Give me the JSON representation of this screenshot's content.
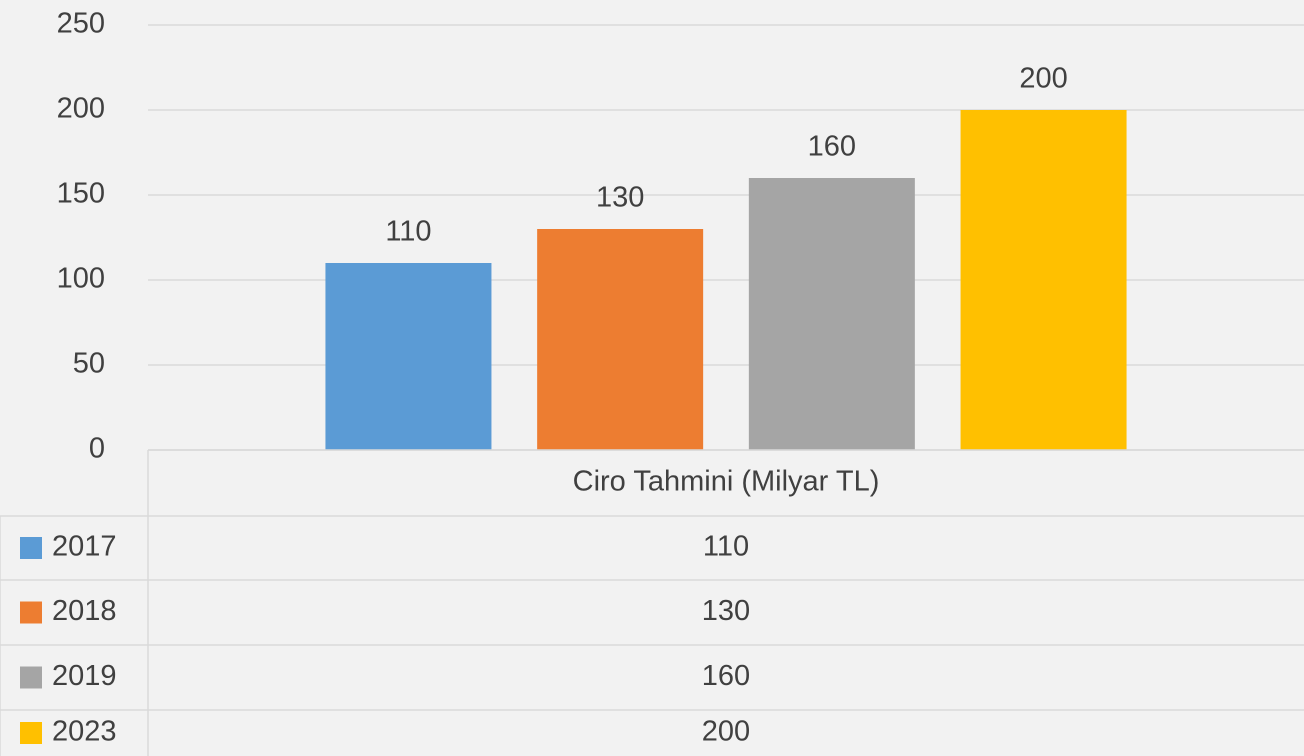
{
  "chart_data": {
    "type": "bar",
    "categories": [
      "Ciro Tahmini (Milyar TL)"
    ],
    "series": [
      {
        "name": "2017",
        "color": "#5b9bd5",
        "values": [
          110
        ]
      },
      {
        "name": "2018",
        "color": "#ed7d31",
        "values": [
          130
        ]
      },
      {
        "name": "2019",
        "color": "#a5a5a5",
        "values": [
          160
        ]
      },
      {
        "name": "2023",
        "color": "#ffc000",
        "values": [
          200
        ]
      }
    ],
    "ylim": [
      0,
      250
    ],
    "yticks": [
      0,
      50,
      100,
      150,
      200,
      250
    ],
    "grid": true,
    "data_table": true
  }
}
